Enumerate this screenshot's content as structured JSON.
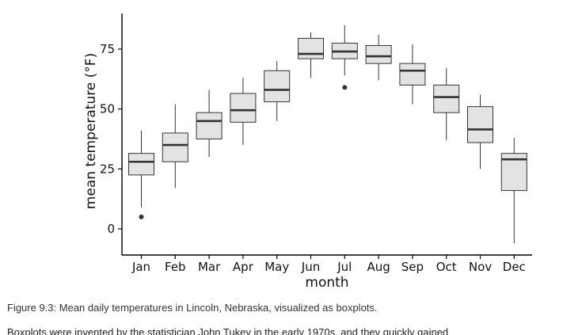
{
  "chart_data": {
    "type": "box",
    "title": "",
    "xlabel": "month",
    "ylabel": "mean temperature (°F)",
    "ylim": [
      -10,
      90
    ],
    "yticks": [
      0,
      25,
      50,
      75
    ],
    "grid": false,
    "categories": [
      "Jan",
      "Feb",
      "Mar",
      "Apr",
      "May",
      "Jun",
      "Jul",
      "Aug",
      "Sep",
      "Oct",
      "Nov",
      "Dec"
    ],
    "boxes": [
      {
        "min": 9,
        "q1": 22.5,
        "median": 28,
        "q3": 31.5,
        "max": 41,
        "outliers": [
          5
        ]
      },
      {
        "min": 17,
        "q1": 28,
        "median": 35,
        "q3": 40,
        "max": 52,
        "outliers": []
      },
      {
        "min": 30,
        "q1": 37.5,
        "median": 45,
        "q3": 48.5,
        "max": 58,
        "outliers": []
      },
      {
        "min": 35,
        "q1": 44.5,
        "median": 49.5,
        "q3": 56.5,
        "max": 63,
        "outliers": []
      },
      {
        "min": 45,
        "q1": 53,
        "median": 58,
        "q3": 66,
        "max": 70,
        "outliers": []
      },
      {
        "min": 63,
        "q1": 71,
        "median": 73,
        "q3": 79.5,
        "max": 82,
        "outliers": []
      },
      {
        "min": 64,
        "q1": 71,
        "median": 74,
        "q3": 77.5,
        "max": 85,
        "outliers": [
          59
        ]
      },
      {
        "min": 62,
        "q1": 69,
        "median": 72,
        "q3": 76.5,
        "max": 81,
        "outliers": []
      },
      {
        "min": 52,
        "q1": 60,
        "median": 66,
        "q3": 69,
        "max": 77,
        "outliers": []
      },
      {
        "min": 37,
        "q1": 48.5,
        "median": 55,
        "q3": 60,
        "max": 67,
        "outliers": []
      },
      {
        "min": 25,
        "q1": 36,
        "median": 41.5,
        "q3": 51,
        "max": 56,
        "outliers": []
      },
      {
        "min": -6,
        "q1": 16,
        "median": 29,
        "q3": 31.5,
        "max": 38,
        "outliers": []
      }
    ],
    "box_fill": "#e3e3e3",
    "line_color": "#333333"
  },
  "caption": "Figure 9.3: Mean daily temperatures in Lincoln, Nebraska, visualized as boxplots.",
  "body_text": "Boxplots were invented by the statistician John Tukey in the early 1970s, and they quickly gained"
}
